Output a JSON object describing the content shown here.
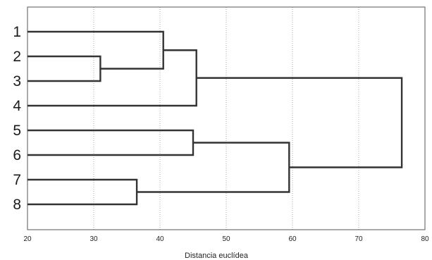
{
  "chart_data": {
    "type": "dendrogram",
    "title": "",
    "xlabel": "Distancia euclídea",
    "ylabel": "",
    "xlim": [
      20,
      80
    ],
    "x_ticks": [
      "20",
      "30",
      "40",
      "50",
      "60",
      "70",
      "80"
    ],
    "grid": "vertical dotted",
    "leaves": [
      "1",
      "2",
      "3",
      "4",
      "5",
      "6",
      "7",
      "8"
    ],
    "merges": [
      {
        "left": "2",
        "right": "3",
        "distance": 31
      },
      {
        "left": "7",
        "right": "8",
        "distance": 36.5
      },
      {
        "left": "1",
        "right": "(2,3)",
        "distance": 40.5
      },
      {
        "left": "5",
        "right": "6",
        "distance": 45
      },
      {
        "left": "(1,2,3)",
        "right": "4",
        "distance": 45.5
      },
      {
        "left": "(5,6)",
        "right": "(7,8)",
        "distance": 59.5
      },
      {
        "left": "(1,2,3,4)",
        "right": "(5,6,7,8)",
        "distance": 76.5
      }
    ],
    "leaf_start": 20,
    "colors": {
      "line": "#333333",
      "grid": "#aaaaaa",
      "frame": "#555555"
    }
  }
}
